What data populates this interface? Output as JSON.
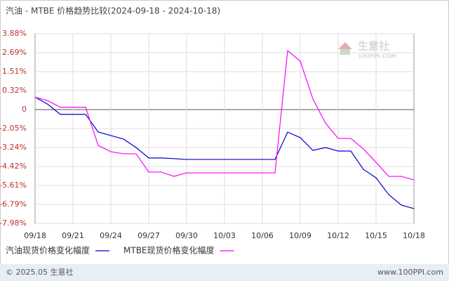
{
  "chart_data": {
    "type": "line",
    "title": "汽油 - MTBE 价格趋势比较(2024-09-18 - 2024-10-18)",
    "categories": [
      "09/18",
      null,
      null,
      "09/21",
      null,
      null,
      "09/24",
      null,
      null,
      "09/27",
      null,
      null,
      "09/30",
      null,
      null,
      "10/03",
      null,
      null,
      "10/06",
      null,
      null,
      "10/09",
      null,
      null,
      "10/12",
      null,
      null,
      "10/15",
      null,
      null,
      "10/18"
    ],
    "series": [
      {
        "name": "汽油现货价格变化幅度",
        "color": "#0000cc",
        "values": [
          0.21,
          0.09,
          -0.51,
          -0.51,
          -0.51,
          -2.27,
          -2.49,
          -2.71,
          -3.24,
          -3.89,
          -3.89,
          -3.93,
          -3.98,
          -3.98,
          -3.98,
          -3.98,
          -3.98,
          -3.98,
          -3.98,
          -3.98,
          -2.27,
          -2.62,
          -3.42,
          -3.24,
          -3.46,
          -3.46,
          -4.6,
          -5.13,
          -6.17,
          -6.83,
          -7.05
        ]
      },
      {
        "name": "MTBE现货价格变化幅度",
        "color": "#ff00ff",
        "values": [
          0.21,
          0.15,
          0.04,
          0.04,
          0.04,
          -3.11,
          -3.5,
          -3.63,
          -3.63,
          -4.77,
          -4.77,
          -5.04,
          -4.82,
          -4.82,
          -4.82,
          -4.82,
          -4.82,
          -4.82,
          -4.82,
          -4.82,
          2.82,
          2.16,
          0.18,
          -1.46,
          -2.67,
          -2.67,
          -3.33,
          -4.16,
          -5.04,
          -5.04,
          -5.26
        ]
      }
    ],
    "ylim": [
      -7.98,
      3.88
    ],
    "yticks": [
      {
        "value": 3.88,
        "label": "3.88%"
      },
      {
        "value": 2.69,
        "label": "2.69%"
      },
      {
        "value": 1.51,
        "label": "1.51%"
      },
      {
        "value": 0.32,
        "label": "0.32%"
      },
      0,
      {
        "value": -2.05,
        "label": "-2.05%"
      },
      {
        "value": -3.24,
        "label": "-3.24%"
      },
      {
        "value": -4.42,
        "label": "-4.42%"
      },
      {
        "value": -5.61,
        "label": "-5.61%"
      },
      {
        "value": -6.79,
        "label": "-6.79%"
      },
      {
        "value": -7.98,
        "label": "-7.98%"
      }
    ],
    "grid": true
  },
  "watermark": {
    "name": "生意社",
    "site": "100PPI.COM"
  },
  "footer": {
    "copyright": "© 2025.05 生意社",
    "site": "www.100PPI.com"
  }
}
